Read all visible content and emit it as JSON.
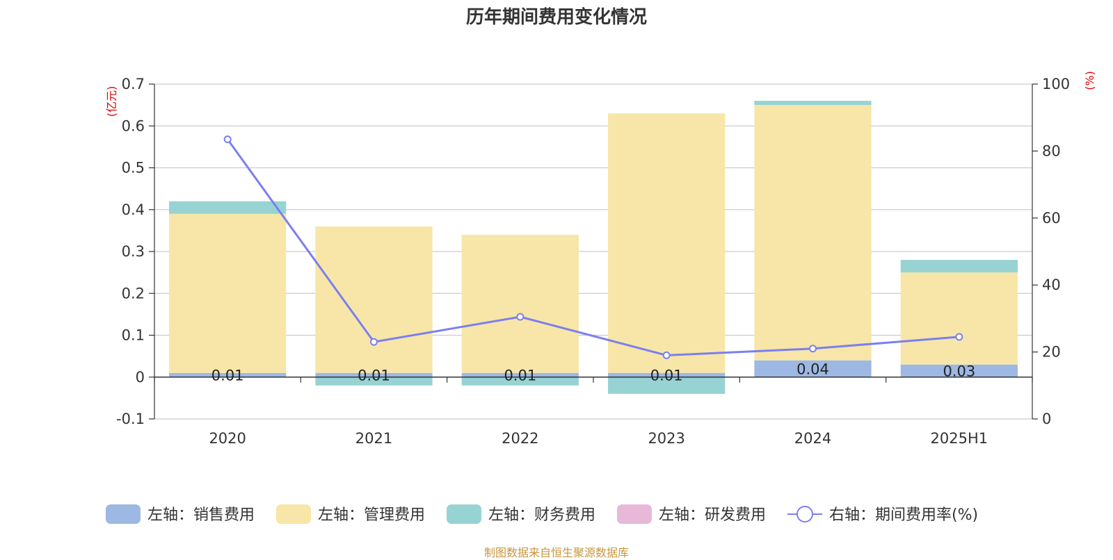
{
  "chart_data": {
    "type": "bar",
    "title": "历年期间费用变化情况",
    "categories": [
      "2020",
      "2021",
      "2022",
      "2023",
      "2024",
      "2025H1"
    ],
    "stacked": true,
    "left_axis": {
      "unit": "(亿元)",
      "ylim": [
        -0.1,
        0.7
      ],
      "ticks": [
        "-0.1",
        "0",
        "0.1",
        "0.2",
        "0.3",
        "0.4",
        "0.5",
        "0.6",
        "0.7"
      ]
    },
    "right_axis": {
      "unit": "(%)",
      "ylim": [
        0,
        100
      ],
      "ticks": [
        "0",
        "20",
        "40",
        "60",
        "80",
        "100"
      ]
    },
    "series": [
      {
        "name": "左轴：销售费用",
        "axis": "left",
        "type": "bar",
        "color": "#9db8e2",
        "values": [
          0.01,
          0.01,
          0.01,
          0.01,
          0.04,
          0.03
        ],
        "labels": [
          "0.01",
          "0.01",
          "0.01",
          "0.01",
          "0.04",
          "0.03"
        ]
      },
      {
        "name": "左轴：管理费用",
        "axis": "left",
        "type": "bar",
        "color": "#f7e6a8",
        "values": [
          0.38,
          0.35,
          0.33,
          0.62,
          0.61,
          0.22
        ]
      },
      {
        "name": "左轴：财务费用",
        "axis": "left",
        "type": "bar",
        "color": "#98d3d4",
        "values": [
          0.03,
          -0.02,
          -0.02,
          -0.04,
          0.01,
          0.03
        ]
      },
      {
        "name": "左轴：研发费用",
        "axis": "left",
        "type": "bar",
        "color": "#e8b8d9",
        "values": [
          0,
          0,
          0,
          0,
          0,
          0
        ]
      },
      {
        "name": "右轴：期间费用率(%)",
        "axis": "right",
        "type": "line",
        "color": "#7b7ff0",
        "values": [
          83.5,
          23.0,
          30.5,
          19.0,
          21.0,
          24.5
        ]
      }
    ],
    "grid": true,
    "legend_position": "bottom"
  },
  "source_note": "制图数据来自恒生聚源数据库"
}
